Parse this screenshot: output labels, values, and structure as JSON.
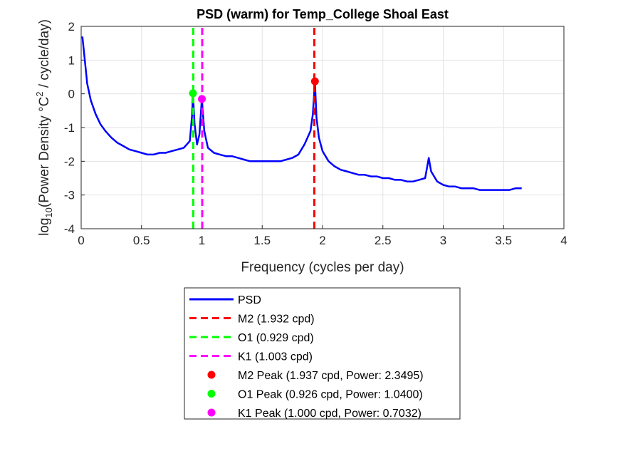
{
  "chart_data": {
    "type": "line",
    "title": "PSD (warm) for Temp_College Shoal East",
    "xlabel": "Frequency (cycles per day)",
    "ylabel": {
      "base": "log",
      "sub": "10",
      "mid": "(Power Density °C",
      "sup": "2",
      "tail": " / cycle/day)"
    },
    "xlim": [
      0,
      4
    ],
    "ylim": [
      -4,
      2
    ],
    "xticks": [
      0,
      0.5,
      1,
      1.5,
      2,
      2.5,
      3,
      3.5,
      4
    ],
    "xtick_labels": [
      "0",
      "0.5",
      "1",
      "1.5",
      "2",
      "2.5",
      "3",
      "3.5",
      "4"
    ],
    "yticks": [
      -4,
      -3,
      -2,
      -1,
      0,
      1,
      2
    ],
    "ytick_labels": [
      "-4",
      "-3",
      "-2",
      "-1",
      "0",
      "1",
      "2"
    ],
    "grid": true,
    "legend_position": "below plot",
    "series": [
      {
        "name": "PSD",
        "color": "#0000ff",
        "style": "solid",
        "x": [
          0.01,
          0.03,
          0.05,
          0.08,
          0.12,
          0.16,
          0.2,
          0.25,
          0.3,
          0.35,
          0.4,
          0.45,
          0.5,
          0.55,
          0.6,
          0.65,
          0.7,
          0.75,
          0.8,
          0.85,
          0.9,
          0.92,
          0.926,
          0.94,
          0.96,
          0.98,
          1.0,
          1.02,
          1.05,
          1.1,
          1.15,
          1.2,
          1.25,
          1.3,
          1.35,
          1.4,
          1.45,
          1.5,
          1.55,
          1.6,
          1.65,
          1.7,
          1.75,
          1.8,
          1.85,
          1.9,
          1.92,
          1.937,
          1.95,
          1.97,
          2.0,
          2.05,
          2.1,
          2.15,
          2.2,
          2.25,
          2.3,
          2.35,
          2.4,
          2.45,
          2.5,
          2.55,
          2.6,
          2.65,
          2.7,
          2.75,
          2.8,
          2.85,
          2.88,
          2.9,
          2.95,
          3.0,
          3.05,
          3.1,
          3.15,
          3.2,
          3.25,
          3.3,
          3.35,
          3.4,
          3.45,
          3.5,
          3.55,
          3.6,
          3.65
        ],
        "y": [
          1.7,
          1.0,
          0.3,
          -0.2,
          -0.6,
          -0.9,
          -1.1,
          -1.3,
          -1.45,
          -1.55,
          -1.65,
          -1.7,
          -1.75,
          -1.8,
          -1.8,
          -1.75,
          -1.75,
          -1.7,
          -1.65,
          -1.6,
          -1.4,
          -0.6,
          0.0,
          -0.9,
          -1.5,
          -1.2,
          -0.15,
          -1.1,
          -1.6,
          -1.75,
          -1.8,
          -1.85,
          -1.85,
          -1.9,
          -1.95,
          -2.0,
          -2.0,
          -2.0,
          -2.0,
          -2.0,
          -2.0,
          -1.95,
          -1.9,
          -1.8,
          -1.5,
          -1.1,
          -0.6,
          0.35,
          -0.7,
          -1.3,
          -1.7,
          -2.0,
          -2.15,
          -2.25,
          -2.3,
          -2.35,
          -2.4,
          -2.4,
          -2.45,
          -2.45,
          -2.5,
          -2.5,
          -2.55,
          -2.55,
          -2.6,
          -2.6,
          -2.55,
          -2.5,
          -1.9,
          -2.3,
          -2.6,
          -2.7,
          -2.75,
          -2.75,
          -2.8,
          -2.8,
          -2.8,
          -2.85,
          -2.85,
          -2.85,
          -2.85,
          -2.85,
          -2.85,
          -2.8,
          -2.8
        ]
      },
      {
        "name": "M2 (1.932 cpd)",
        "color": "#ff0000",
        "style": "dashed",
        "x": [
          1.932,
          1.932
        ],
        "y": [
          -4,
          2
        ]
      },
      {
        "name": "O1 (0.929 cpd)",
        "color": "#00ff00",
        "style": "dashed",
        "x": [
          0.929,
          0.929
        ],
        "y": [
          -4,
          2
        ]
      },
      {
        "name": "K1 (1.003 cpd)",
        "color": "#ff00ff",
        "style": "dashed",
        "x": [
          1.003,
          1.003
        ],
        "y": [
          -4,
          2
        ]
      },
      {
        "name": "M2 Peak (1.937 cpd, Power: 2.3495)",
        "color": "#ff0000",
        "style": "marker",
        "x": [
          1.937
        ],
        "y": [
          0.371
        ]
      },
      {
        "name": "O1 Peak (0.926 cpd, Power: 1.0400)",
        "color": "#00ff00",
        "style": "marker",
        "x": [
          0.926
        ],
        "y": [
          0.017
        ]
      },
      {
        "name": "K1 Peak (1.000 cpd, Power: 0.7032)",
        "color": "#ff00ff",
        "style": "marker",
        "x": [
          1.0
        ],
        "y": [
          -0.153
        ]
      }
    ]
  }
}
